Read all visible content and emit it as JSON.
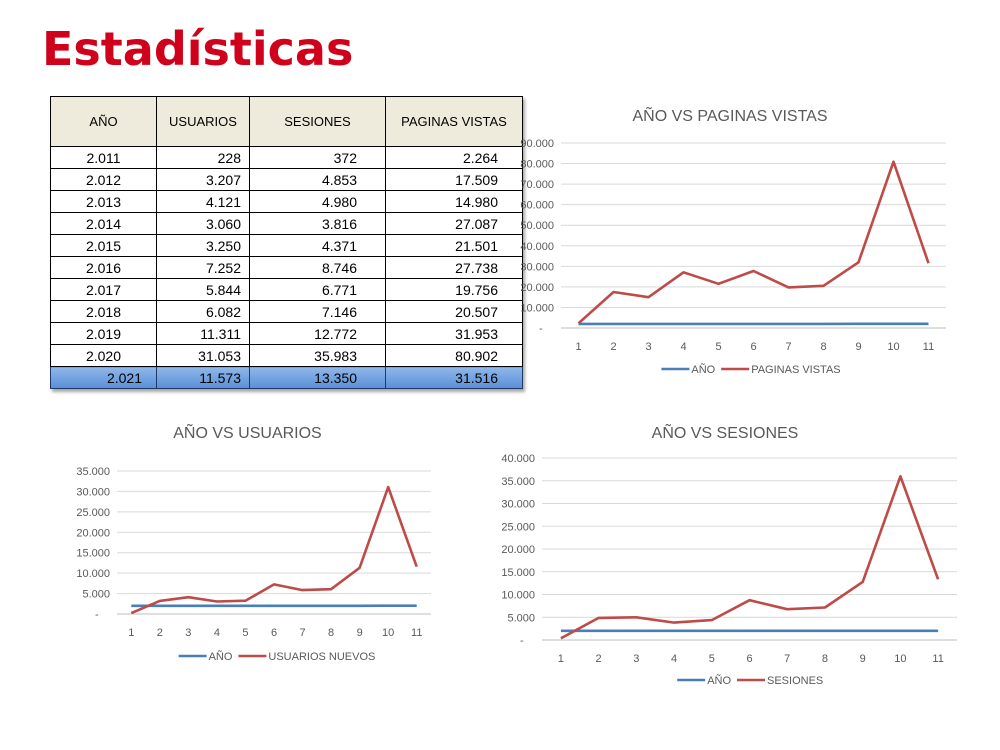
{
  "page": {
    "title": "Estadísticas"
  },
  "table": {
    "headers": [
      "AÑO",
      "USUARIOS",
      "SESIONES",
      "PAGINAS VISTAS"
    ],
    "rows": [
      [
        "2.011",
        "228",
        "372",
        "2.264"
      ],
      [
        "2.012",
        "3.207",
        "4.853",
        "17.509"
      ],
      [
        "2.013",
        "4.121",
        "4.980",
        "14.980"
      ],
      [
        "2.014",
        "3.060",
        "3.816",
        "27.087"
      ],
      [
        "2.015",
        "3.250",
        "4.371",
        "21.501"
      ],
      [
        "2.016",
        "7.252",
        "8.746",
        "27.738"
      ],
      [
        "2.017",
        "5.844",
        "6.771",
        "19.756"
      ],
      [
        "2.018",
        "6.082",
        "7.146",
        "20.507"
      ],
      [
        "2.019",
        "11.311",
        "12.772",
        "31.953"
      ],
      [
        "2.020",
        "31.053",
        "35.983",
        "80.902"
      ],
      [
        "2.021",
        "11.573",
        "13.350",
        "31.516"
      ]
    ],
    "highlight_color": "#6f9ee0"
  },
  "colors": {
    "title": "#d0021b",
    "series_year": "#4a7ebb",
    "series_value": "#be4b48",
    "grid": "#d9d9d9",
    "text": "#595959"
  },
  "chart_data": [
    {
      "type": "line",
      "title": "AÑO VS PAGINAS VISTAS",
      "x": [
        1,
        2,
        3,
        4,
        5,
        6,
        7,
        8,
        9,
        10,
        11
      ],
      "ylim": [
        0,
        90000
      ],
      "yticks": [
        "-",
        "10.000",
        "20.000",
        "30.000",
        "40.000",
        "50.000",
        "60.000",
        "70.000",
        "80.000",
        "90.000"
      ],
      "grid": true,
      "legend": "bottom",
      "series": [
        {
          "name": "AÑO",
          "values": [
            2011,
            2012,
            2013,
            2014,
            2015,
            2016,
            2017,
            2018,
            2019,
            2020,
            2021
          ]
        },
        {
          "name": "PAGINAS VISTAS",
          "values": [
            2264,
            17509,
            14980,
            27087,
            21501,
            27738,
            19756,
            20507,
            31953,
            80902,
            31516
          ]
        }
      ]
    },
    {
      "type": "line",
      "title": "AÑO VS USUARIOS",
      "x": [
        1,
        2,
        3,
        4,
        5,
        6,
        7,
        8,
        9,
        10,
        11
      ],
      "ylim": [
        0,
        35000
      ],
      "yticks": [
        "-",
        "5.000",
        "10.000",
        "15.000",
        "20.000",
        "25.000",
        "30.000",
        "35.000"
      ],
      "grid": true,
      "legend": "bottom",
      "series": [
        {
          "name": "AÑO",
          "values": [
            2011,
            2012,
            2013,
            2014,
            2015,
            2016,
            2017,
            2018,
            2019,
            2020,
            2021
          ]
        },
        {
          "name": "USUARIOS NUEVOS",
          "values": [
            228,
            3207,
            4121,
            3060,
            3250,
            7252,
            5844,
            6082,
            11311,
            31053,
            11573
          ]
        }
      ]
    },
    {
      "type": "line",
      "title": "AÑO VS SESIONES",
      "x": [
        1,
        2,
        3,
        4,
        5,
        6,
        7,
        8,
        9,
        10,
        11
      ],
      "ylim": [
        0,
        40000
      ],
      "yticks": [
        "-",
        "5.000",
        "10.000",
        "15.000",
        "20.000",
        "25.000",
        "30.000",
        "35.000",
        "40.000"
      ],
      "grid": true,
      "legend": "bottom",
      "series": [
        {
          "name": "AÑO",
          "values": [
            2011,
            2012,
            2013,
            2014,
            2015,
            2016,
            2017,
            2018,
            2019,
            2020,
            2021
          ]
        },
        {
          "name": "SESIONES",
          "values": [
            372,
            4853,
            4980,
            3816,
            4371,
            8746,
            6771,
            7146,
            12772,
            35983,
            13350
          ]
        }
      ]
    }
  ]
}
